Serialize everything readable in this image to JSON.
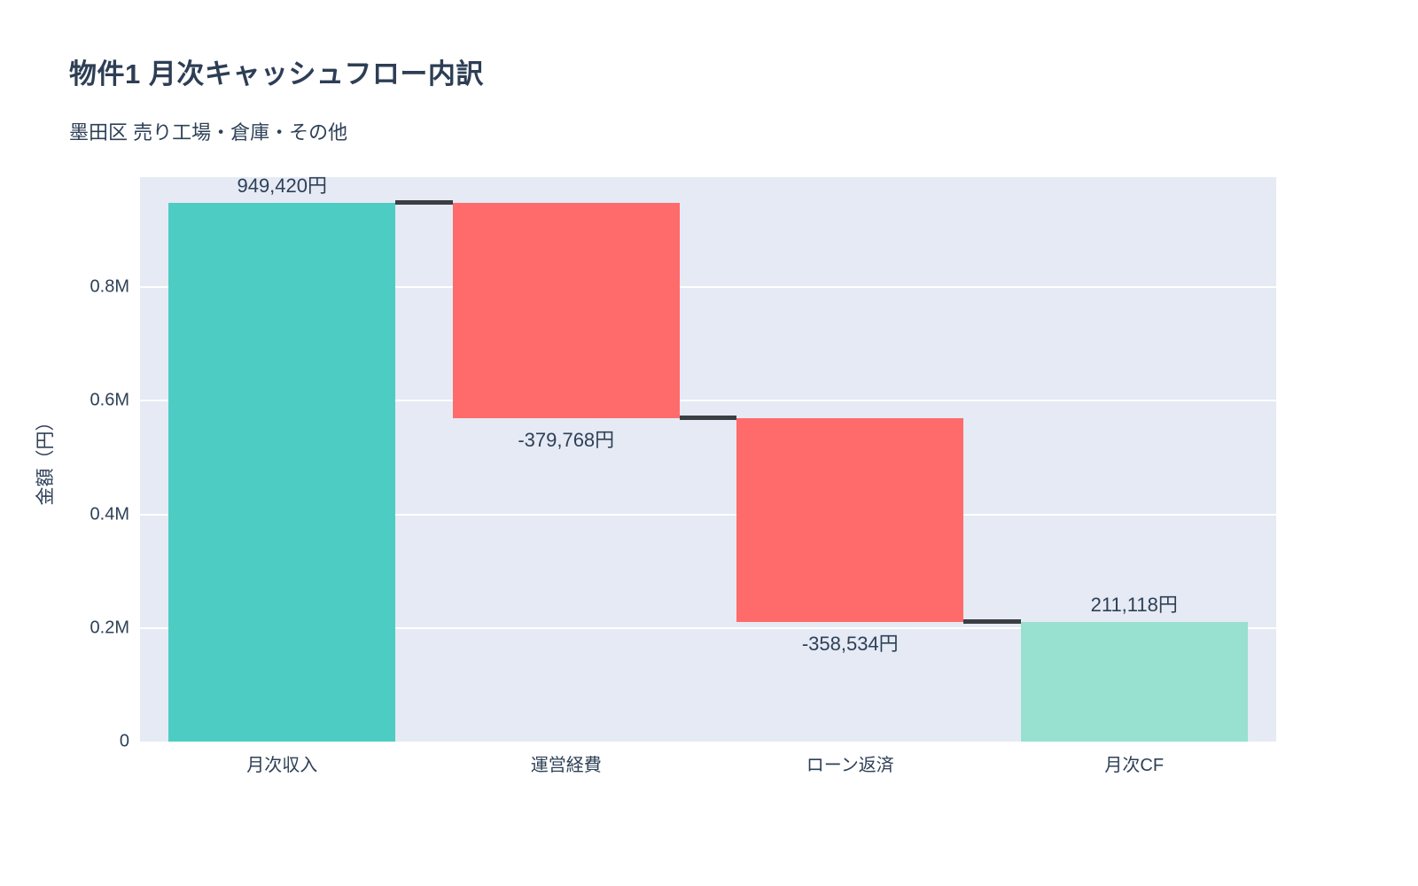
{
  "header": {
    "title": "物件1 月次キャッシュフロー内訳",
    "subtitle": "墨田区 売り工場・倉庫・その他"
  },
  "chart_data": {
    "type": "waterfall",
    "title": "物件1 月次キャッシュフロー内訳",
    "subtitle": "墨田区 売り工場・倉庫・その他",
    "categories": [
      "月次収入",
      "運営経費",
      "ローン返済",
      "月次CF"
    ],
    "measures": [
      "relative",
      "relative",
      "relative",
      "total"
    ],
    "values": [
      949420,
      -379768,
      -358534,
      211118
    ],
    "cumulative": [
      949420,
      569652,
      211118,
      211118
    ],
    "bar_labels": [
      "949,420円",
      "-379,768円",
      "-358,534円",
      "211,118円"
    ],
    "xlabel": "",
    "ylabel": "金額（円）",
    "ylim": [
      0,
      994000
    ],
    "yticks": [
      {
        "value": 0,
        "label": "0"
      },
      {
        "value": 200000,
        "label": "0.2M"
      },
      {
        "value": 400000,
        "label": "0.4M"
      },
      {
        "value": 600000,
        "label": "0.6M"
      },
      {
        "value": 800000,
        "label": "0.8M"
      }
    ],
    "grid": true,
    "legend_position": "none",
    "colors": {
      "increasing": "#4dccc3",
      "decreasing": "#ff6b6b",
      "total": "#98e0cf",
      "connector": "#3b3f44",
      "plot_background": "#e5eaf4",
      "gridline": "#ffffff",
      "text": "#2e4057"
    }
  }
}
